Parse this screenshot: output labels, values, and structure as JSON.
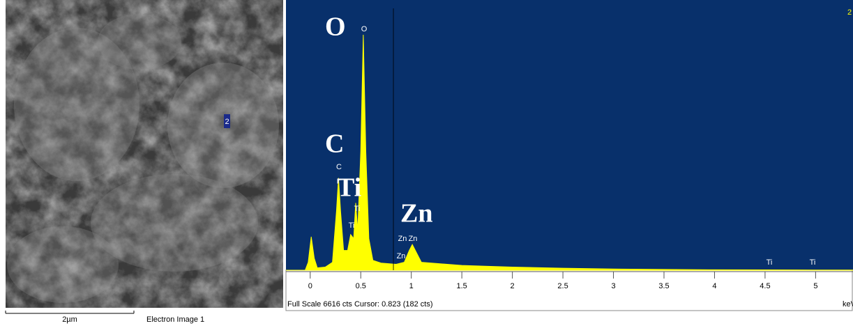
{
  "electron_image": {
    "marker": "2",
    "scale_bar": "2µm",
    "caption": "Electron Image 1"
  },
  "chart_data": {
    "type": "area",
    "color": "#ffff00",
    "background": "#08306b",
    "x": [
      -0.24,
      -0.05,
      -0.02,
      0.01,
      0.04,
      0.07,
      0.15,
      0.22,
      0.26,
      0.28,
      0.3,
      0.33,
      0.37,
      0.4,
      0.43,
      0.45,
      0.47,
      0.5,
      0.525,
      0.55,
      0.58,
      0.62,
      0.7,
      0.85,
      0.93,
      0.98,
      1.01,
      1.05,
      1.1,
      1.5,
      2.0,
      2.5,
      3.0,
      3.5,
      4.0,
      4.5,
      5.0,
      5.37
    ],
    "values": [
      0,
      0,
      200,
      845,
      300,
      60,
      80,
      200,
      1500,
      2330,
      1500,
      500,
      500,
      900,
      800,
      1700,
      1000,
      3000,
      5950,
      3000,
      800,
      250,
      180,
      150,
      200,
      500,
      650,
      450,
      200,
      120,
      80,
      50,
      30,
      20,
      10,
      8,
      5,
      5
    ],
    "xlim": [
      -0.24,
      5.37
    ],
    "ylim": [
      0,
      6616
    ],
    "xticks": [
      0,
      0.5,
      1,
      1.5,
      2,
      2.5,
      3,
      3.5,
      4,
      4.5,
      5
    ],
    "cursor": 0.823,
    "x_unit": "keV",
    "status": "Full Scale 6616 cts Cursor: 0.823 (182 cts)",
    "spectrum_label": "2",
    "peak_labels": [
      "O",
      "C",
      "Ti",
      "Ti",
      "Zn",
      "Zn",
      "Zn",
      "Ti",
      "Ti"
    ],
    "element_labels": [
      "O",
      "C",
      "Ti",
      "Zn"
    ]
  }
}
